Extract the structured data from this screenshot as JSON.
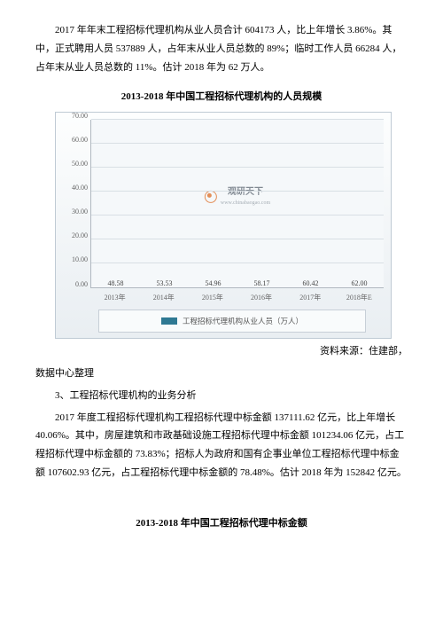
{
  "para1": "2017 年年末工程招标代理机构从业人员合计 604173 人，比上年增长 3.86%。其中，正式聘用人员 537889 人，占年末从业人员总数的 89%；临时工作人员 66284 人，占年末从业人员总数的 11%。估计 2018 年为 62 万人。",
  "chart1_title": "2013-2018 年中国工程招标代理机构的人员规模",
  "chart1": {
    "type": "bar",
    "ylim": [
      0,
      70
    ],
    "ytick_step": 10,
    "yticks": [
      "70.00",
      "60.00",
      "50.00",
      "40.00",
      "30.00",
      "20.00",
      "10.00",
      "0.00"
    ],
    "categories": [
      "2013年",
      "2014年",
      "2015年",
      "2016年",
      "2017年",
      "2018年E"
    ],
    "values": [
      48.58,
      53.53,
      54.96,
      58.17,
      60.42,
      62.0
    ],
    "value_labels": [
      "48.58",
      "53.53",
      "54.96",
      "58.17",
      "60.42",
      "62.00"
    ],
    "bar_color": "#2f7993",
    "grid_color": "#d8dfe4",
    "background_color": "#f5f8fa",
    "legend_label": "工程招标代理机构从业人员（万人）",
    "watermark_main": "观研天下",
    "watermark_sub": "www.chinabaogao.com",
    "title_fontsize": 11,
    "label_fontsize": 8
  },
  "source_right": "资料来源：住建部，",
  "source_left": "数据中心整理",
  "section3_heading": "3、工程招标代理机构的业务分析",
  "para2": "2017 年度工程招标代理机构工程招标代理中标金额 137111.62 亿元，比上年增长 40.06%。其中，房屋建筑和市政基础设施工程招标代理中标金额 101234.06 亿元，占工程招标代理中标金额的 73.83%；招标人为政府和国有企事业单位工程招标代理中标金额 107602.93 亿元，占工程招标代理中标金额的 78.48%。估计 2018 年为 152842 亿元。",
  "chart2_title": "2013-2018 年中国工程招标代理中标金额"
}
